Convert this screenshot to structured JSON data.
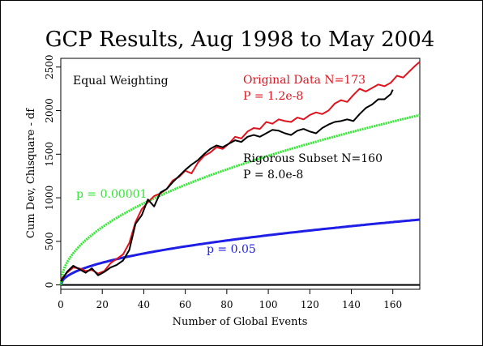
{
  "chart_data": {
    "type": "line",
    "title": "GCP Results, Aug 1998 to May 2004",
    "xlabel": "Number of Global Events",
    "ylabel": "Cum Dev, Chisquare - df",
    "xlim": [
      0,
      173
    ],
    "ylim": [
      -50,
      2600
    ],
    "xticks": [
      0,
      20,
      40,
      60,
      80,
      100,
      120,
      140,
      160
    ],
    "yticks": [
      0,
      500,
      1000,
      1500,
      2000,
      2500
    ],
    "grid": false,
    "annotations": {
      "weighting": "Equal Weighting",
      "original_label": "Original Data N=173",
      "original_p": "P = 1.2e-8",
      "subset_label": "Rigorous Subset N=160",
      "subset_p": "P = 8.0e-8",
      "p_green": "p = 0.00001",
      "p_blue": "p = 0.05"
    },
    "colors": {
      "original": "#e0141e",
      "subset": "#000000",
      "p_green": "#33e833",
      "p_blue": "#1e1ee6",
      "zero_line": "#000000"
    },
    "series": [
      {
        "key": "original",
        "x": [
          0,
          3,
          6,
          9,
          12,
          15,
          18,
          21,
          24,
          27,
          30,
          33,
          36,
          39,
          42,
          45,
          48,
          51,
          54,
          57,
          60,
          63,
          66,
          69,
          72,
          75,
          78,
          81,
          84,
          87,
          90,
          93,
          96,
          99,
          102,
          105,
          108,
          111,
          114,
          117,
          120,
          123,
          126,
          129,
          132,
          135,
          138,
          141,
          144,
          147,
          150,
          153,
          156,
          159,
          162,
          165,
          168,
          171,
          173
        ],
        "values": [
          60,
          140,
          200,
          190,
          160,
          170,
          130,
          160,
          250,
          300,
          350,
          480,
          720,
          870,
          950,
          1020,
          1050,
          1100,
          1200,
          1240,
          1310,
          1280,
          1400,
          1480,
          1520,
          1580,
          1560,
          1620,
          1700,
          1680,
          1760,
          1800,
          1790,
          1870,
          1850,
          1900,
          1880,
          1870,
          1920,
          1900,
          1950,
          1980,
          1960,
          2000,
          2080,
          2120,
          2100,
          2180,
          2250,
          2220,
          2260,
          2300,
          2280,
          2320,
          2400,
          2380,
          2450,
          2520,
          2560
        ]
      },
      {
        "key": "subset",
        "x": [
          0,
          3,
          6,
          9,
          12,
          15,
          18,
          21,
          24,
          27,
          30,
          33,
          36,
          39,
          42,
          45,
          48,
          51,
          54,
          57,
          60,
          63,
          66,
          69,
          72,
          75,
          78,
          81,
          84,
          87,
          90,
          93,
          96,
          99,
          102,
          105,
          108,
          111,
          114,
          117,
          120,
          123,
          126,
          129,
          132,
          135,
          138,
          141,
          144,
          147,
          150,
          153,
          156,
          159,
          160
        ],
        "values": [
          40,
          150,
          220,
          180,
          140,
          190,
          110,
          150,
          200,
          230,
          280,
          400,
          700,
          800,
          980,
          900,
          1060,
          1100,
          1180,
          1250,
          1320,
          1380,
          1430,
          1500,
          1560,
          1600,
          1580,
          1620,
          1660,
          1640,
          1700,
          1720,
          1700,
          1740,
          1780,
          1770,
          1740,
          1720,
          1770,
          1790,
          1760,
          1740,
          1800,
          1840,
          1870,
          1880,
          1900,
          1880,
          1960,
          2030,
          2070,
          2130,
          2130,
          2190,
          2240
        ]
      },
      {
        "key": "p_green",
        "function": "sqrt",
        "coefficient": 148.2
      },
      {
        "key": "p_blue",
        "function": "sqrt",
        "coefficient": 57.0
      }
    ]
  }
}
